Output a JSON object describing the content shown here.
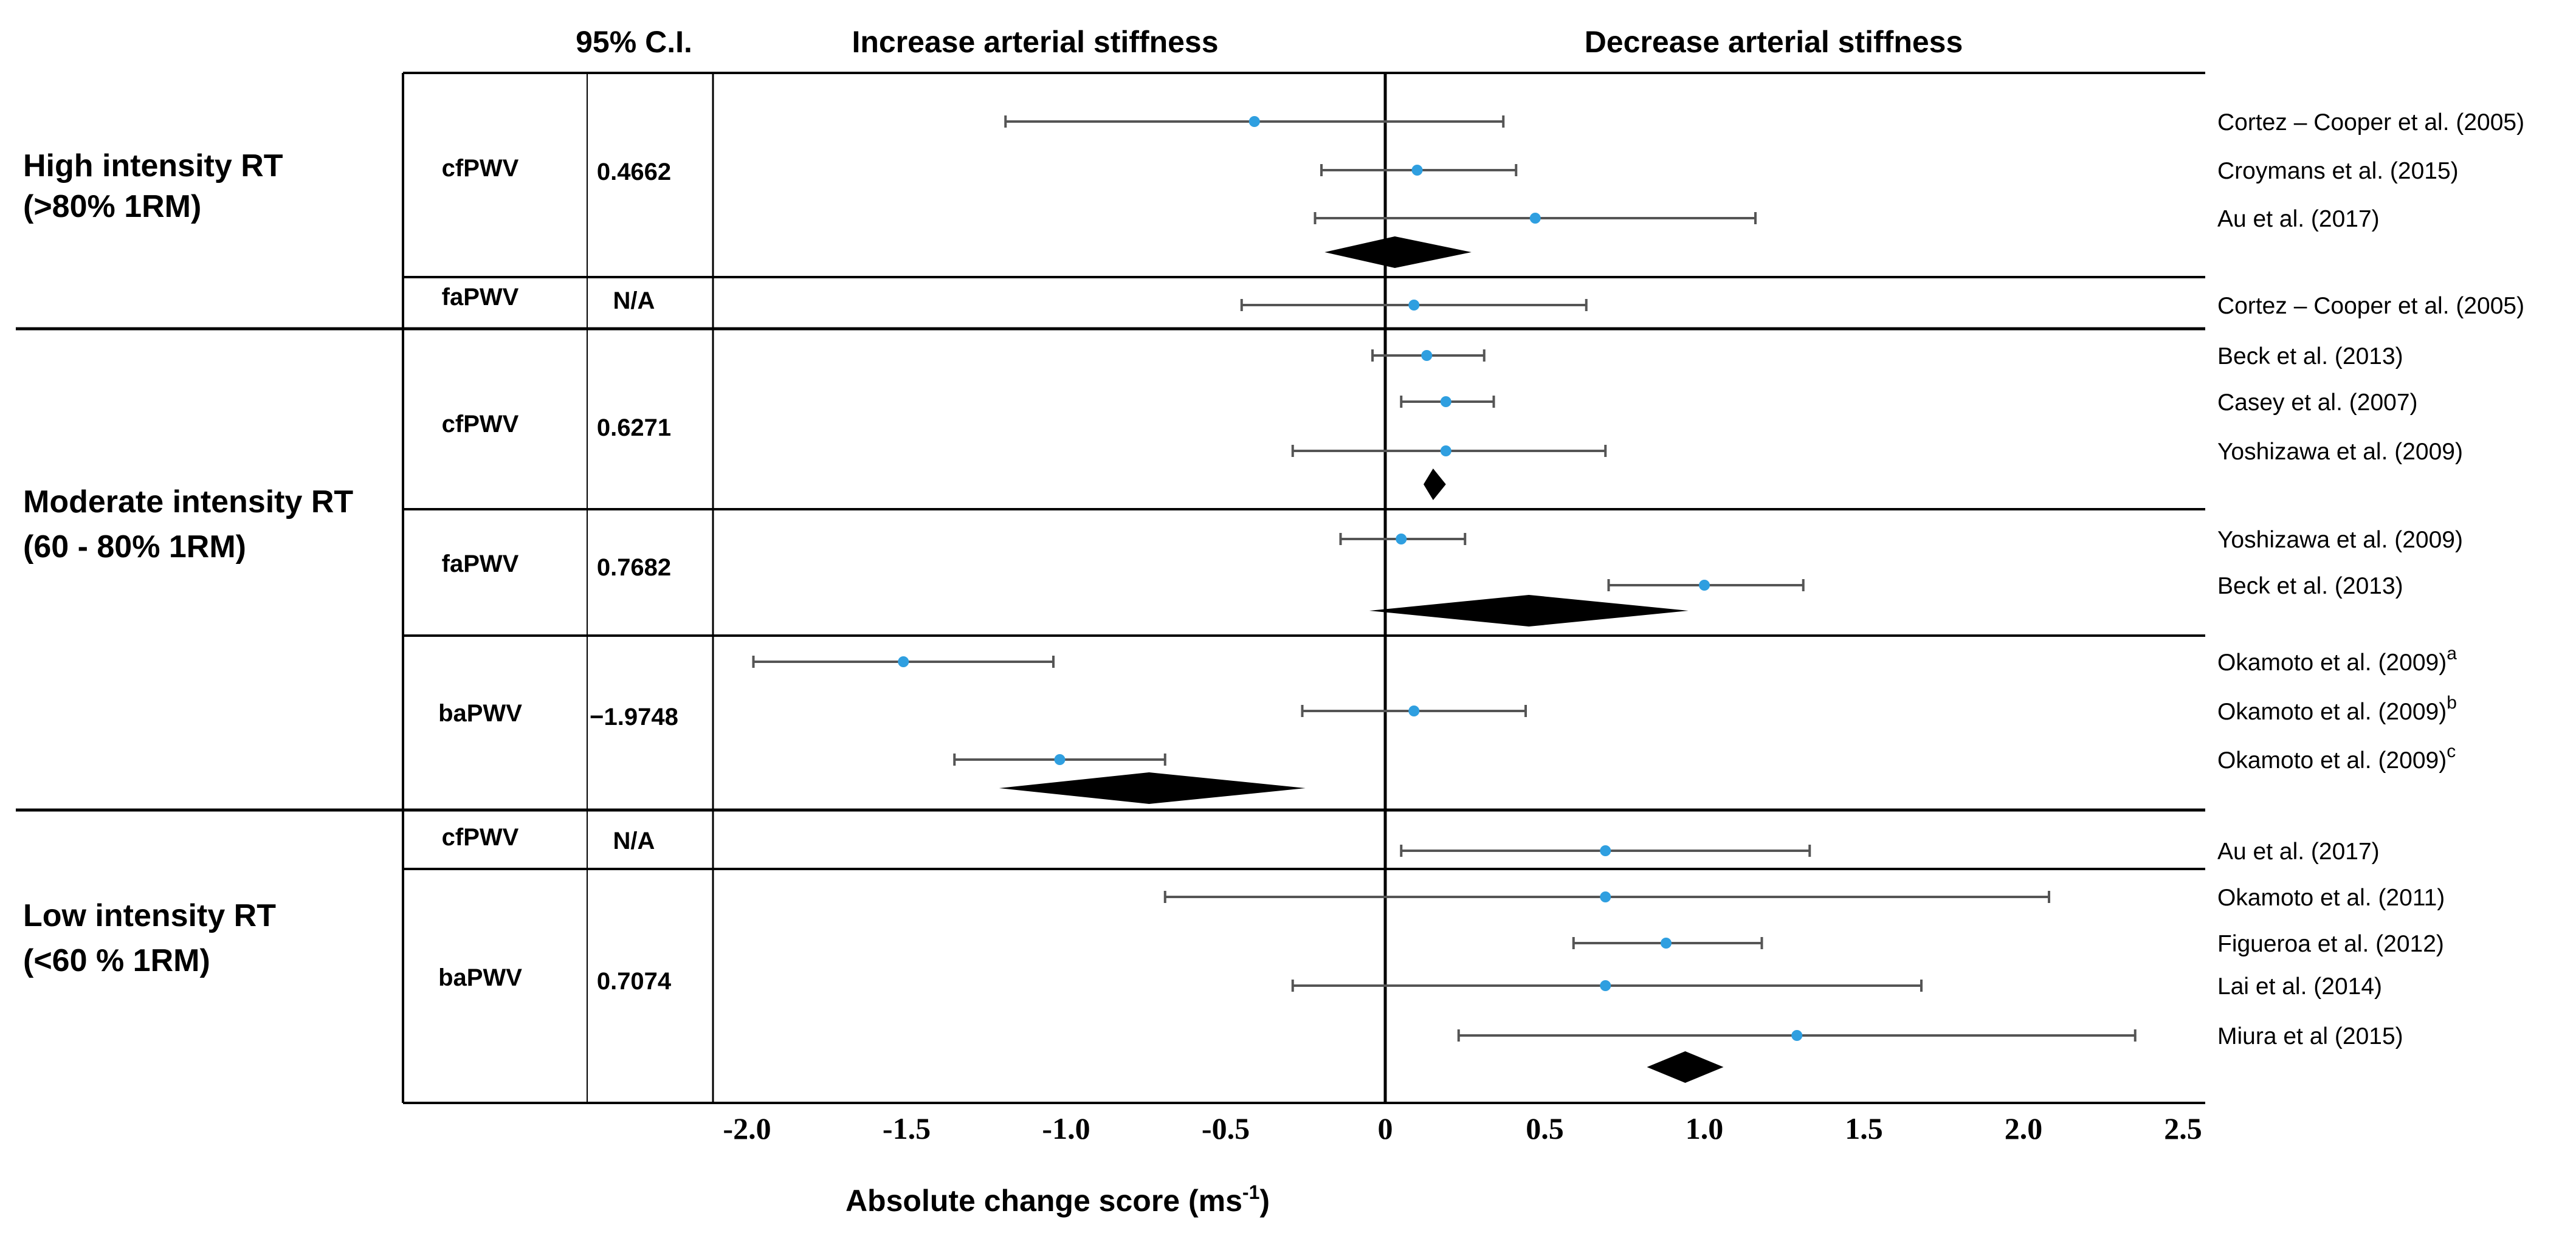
{
  "chart_data": {
    "type": "forest",
    "header": {
      "ci_label": "95% C.I.",
      "left_label": "Increase arterial stiffness",
      "right_label": "Decrease arterial stiffness"
    },
    "xlabel": "Absolute change score (ms",
    "xlabel_sup": "-1",
    "xlabel_close": ")",
    "xlim": [
      -2.0,
      2.5
    ],
    "ticks": [
      -2.0,
      -1.5,
      -1.0,
      -0.5,
      0,
      0.5,
      1.0,
      1.5,
      2.0,
      2.5
    ],
    "tick_labels": [
      "-2.0",
      "-1.5",
      "-1.0",
      "-0.5",
      "0",
      "0.5",
      "1.0",
      "1.5",
      "2.0",
      "2.5"
    ],
    "groups": [
      {
        "label_lines": [
          "High intensity RT",
          "(>80% 1RM)"
        ],
        "subgroups": [
          {
            "measure": "cfPWV",
            "ci": "0.4662",
            "studies": [
              {
                "name": "Cortez – Cooper et al. (2005)",
                "sup": "",
                "est": -0.41,
                "lo": -1.19,
                "hi": 0.37
              },
              {
                "name": "Croymans et al. (2015)",
                "sup": "",
                "est": 0.1,
                "lo": -0.2,
                "hi": 0.41
              },
              {
                "name": "Au et al. (2017)",
                "sup": "",
                "est": 0.47,
                "lo": -0.22,
                "hi": 1.16
              }
            ],
            "pooled": {
              "est": 0.03,
              "lo": -0.19,
              "hi": 0.27
            }
          },
          {
            "measure": "faPWV",
            "ci": "N/A",
            "studies": [
              {
                "name": "Cortez – Cooper et al. (2005)",
                "sup": "",
                "est": 0.09,
                "lo": -0.45,
                "hi": 0.63
              }
            ],
            "pooled": null
          }
        ]
      },
      {
        "label_lines": [
          "Moderate intensity RT",
          "(60 - 80% 1RM)"
        ],
        "subgroups": [
          {
            "measure": "cfPWV",
            "ci": "0.6271",
            "studies": [
              {
                "name": "Beck et al. (2013)",
                "sup": "",
                "est": 0.13,
                "lo": -0.04,
                "hi": 0.31
              },
              {
                "name": "Casey et al. (2007)",
                "sup": "",
                "est": 0.19,
                "lo": 0.05,
                "hi": 0.34
              },
              {
                "name": "Yoshizawa et al. (2009)",
                "sup": "",
                "est": 0.19,
                "lo": -0.29,
                "hi": 0.69
              }
            ],
            "pooled": {
              "est": 0.15,
              "lo": 0.12,
              "hi": 0.19
            }
          },
          {
            "measure": "faPWV",
            "ci": "0.7682",
            "studies": [
              {
                "name": "Yoshizawa et al. (2009)",
                "sup": "",
                "est": 0.05,
                "lo": -0.14,
                "hi": 0.25
              },
              {
                "name": "Beck et al. (2013)",
                "sup": "",
                "est": 1.0,
                "lo": 0.7,
                "hi": 1.31
              }
            ],
            "pooled": {
              "est": 0.45,
              "lo": -0.05,
              "hi": 0.95
            }
          },
          {
            "measure": "baPWV",
            "ci": "−1.9748",
            "studies": [
              {
                "name": "Okamoto et al. (2009)",
                "sup": "a",
                "est": -1.51,
                "lo": -1.98,
                "hi": -1.04
              },
              {
                "name": "Okamoto et al. (2009)",
                "sup": "b",
                "est": 0.09,
                "lo": -0.26,
                "hi": 0.44
              },
              {
                "name": "Okamoto et al. (2009)",
                "sup": "c",
                "est": -1.02,
                "lo": -1.35,
                "hi": -0.69
              }
            ],
            "pooled": {
              "est": -0.74,
              "lo": -1.21,
              "hi": -0.25
            }
          }
        ]
      },
      {
        "label_lines": [
          "Low intensity RT",
          "(<60 % 1RM)"
        ],
        "subgroups": [
          {
            "measure": "cfPWV",
            "ci": "N/A",
            "studies": [
              {
                "name": "Au et al. (2017)",
                "sup": "",
                "est": 0.69,
                "lo": 0.05,
                "hi": 1.33
              }
            ],
            "pooled": null
          },
          {
            "measure": "baPWV",
            "ci": "0.7074",
            "studies": [
              {
                "name": "Okamoto et al. (2011)",
                "sup": "",
                "est": 0.69,
                "lo": -0.69,
                "hi": 2.08
              },
              {
                "name": "Figueroa et al. (2012)",
                "sup": "",
                "est": 0.88,
                "lo": 0.59,
                "hi": 1.18
              },
              {
                "name": "Lai et al. (2014)",
                "sup": "",
                "est": 0.69,
                "lo": -0.29,
                "hi": 1.68
              },
              {
                "name": "Miura et al (2015)",
                "sup": "",
                "est": 1.29,
                "lo": 0.23,
                "hi": 2.35
              }
            ],
            "pooled": {
              "est": 0.94,
              "lo": 0.82,
              "hi": 1.06
            }
          }
        ]
      }
    ]
  }
}
